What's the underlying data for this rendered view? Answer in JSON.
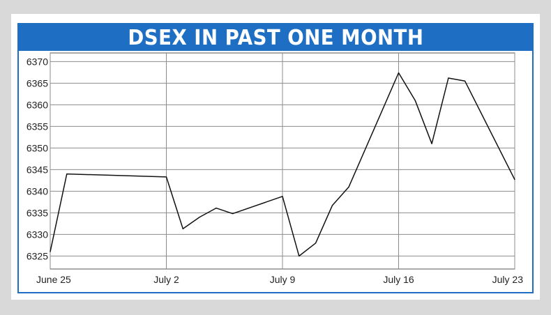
{
  "title": "DSEX IN PAST ONE MONTH",
  "chart_data": {
    "type": "line",
    "title": "DSEX IN PAST ONE MONTH",
    "xlabel": "",
    "ylabel": "",
    "ylim": [
      6322,
      6372
    ],
    "yticks": [
      6325,
      6330,
      6335,
      6340,
      6345,
      6350,
      6355,
      6360,
      6365,
      6370
    ],
    "xlim": [
      0,
      28
    ],
    "xticks": [
      {
        "x": 0,
        "label": "June 25"
      },
      {
        "x": 7,
        "label": "July 2"
      },
      {
        "x": 14,
        "label": "July 9"
      },
      {
        "x": 21,
        "label": "July 16"
      },
      {
        "x": 28,
        "label": "July 23"
      }
    ],
    "grid": true,
    "series": [
      {
        "color": "#111111",
        "points": [
          [
            0,
            6326
          ],
          [
            1,
            6344
          ],
          [
            7,
            6343.3
          ],
          [
            8,
            6331.3
          ],
          [
            9,
            6334
          ],
          [
            10,
            6336.1
          ],
          [
            11,
            6334.8
          ],
          [
            14,
            6338.8
          ],
          [
            15,
            6325
          ],
          [
            16,
            6328
          ],
          [
            17,
            6336.7
          ],
          [
            18,
            6341
          ],
          [
            21,
            6367.4
          ],
          [
            22,
            6361
          ],
          [
            23,
            6351
          ],
          [
            24,
            6366.2
          ],
          [
            25,
            6365.5
          ],
          [
            28,
            6342.7
          ]
        ]
      }
    ]
  },
  "colors": {
    "accent": "#1e6fc4",
    "background": "#d9d9d9",
    "grid": "#8c8c8c",
    "line": "#111111"
  }
}
